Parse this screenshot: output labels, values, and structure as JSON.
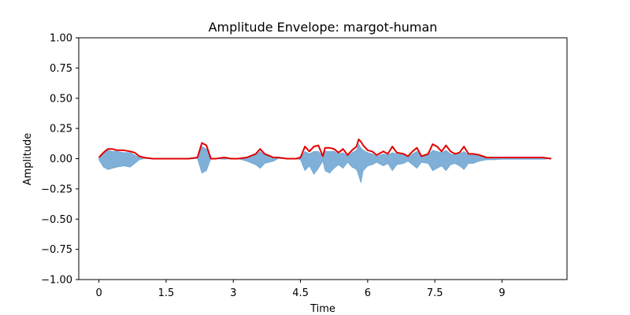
{
  "chart_data": {
    "type": "area",
    "title": "Amplitude Envelope: margot-human",
    "xlabel": "Time",
    "ylabel": "Amplitude",
    "xlim": [
      -0.45,
      10.45
    ],
    "ylim": [
      -1.0,
      1.0
    ],
    "x_ticks": [
      0,
      1.5,
      3,
      4.5,
      6,
      7.5,
      9
    ],
    "x_tick_labels": [
      "0",
      "1.5",
      "3",
      "4.5",
      "6",
      "7.5",
      "9"
    ],
    "y_ticks": [
      1.0,
      0.75,
      0.5,
      0.25,
      0.0,
      -0.25,
      -0.5,
      -0.75,
      -1.0
    ],
    "y_tick_labels": [
      "1.00",
      "0.75",
      "0.50",
      "0.25",
      "0.00",
      "−0.25",
      "−0.50",
      "−0.75",
      "−1.00"
    ],
    "grid": false,
    "colors": {
      "waveform": "#4a8fc7",
      "envelope": "#e00000"
    },
    "series": [
      {
        "kind": "waveform",
        "x": [
          0.0,
          0.1,
          0.2,
          0.3,
          0.4,
          0.55,
          0.7,
          0.8,
          0.9,
          1.0,
          1.2,
          1.5,
          2.0,
          2.2,
          2.3,
          2.4,
          2.5,
          2.6,
          2.8,
          2.95,
          3.1,
          3.3,
          3.5,
          3.6,
          3.7,
          3.9,
          4.0,
          4.2,
          4.4,
          4.5,
          4.6,
          4.7,
          4.8,
          4.9,
          5.0,
          5.05,
          5.15,
          5.25,
          5.35,
          5.45,
          5.55,
          5.65,
          5.75,
          5.8,
          5.85,
          5.9,
          6.0,
          6.1,
          6.2,
          6.35,
          6.45,
          6.55,
          6.65,
          6.8,
          6.9,
          7.0,
          7.1,
          7.2,
          7.35,
          7.45,
          7.55,
          7.65,
          7.75,
          7.85,
          7.95,
          8.05,
          8.15,
          8.25,
          8.35,
          8.5,
          8.65,
          8.8,
          9.0,
          9.3,
          9.6,
          9.9,
          10.1
        ],
        "upper": [
          0.01,
          0.04,
          0.07,
          0.06,
          0.06,
          0.05,
          0.05,
          0.03,
          0.01,
          0.0,
          0.0,
          0.0,
          0.0,
          0.0,
          0.1,
          0.08,
          0.0,
          0.0,
          0.005,
          0.0,
          0.0,
          0.01,
          0.03,
          0.06,
          0.03,
          0.01,
          0.0,
          0.0,
          0.0,
          0.005,
          0.06,
          0.04,
          0.06,
          0.06,
          0.02,
          0.06,
          0.06,
          0.06,
          0.04,
          0.05,
          0.02,
          0.05,
          0.07,
          0.12,
          0.09,
          0.07,
          0.05,
          0.04,
          0.02,
          0.04,
          0.03,
          0.05,
          0.04,
          0.03,
          0.01,
          0.04,
          0.06,
          0.02,
          0.03,
          0.07,
          0.06,
          0.05,
          0.07,
          0.04,
          0.03,
          0.04,
          0.06,
          0.03,
          0.03,
          0.02,
          0.01,
          0.01,
          0.005,
          0.005,
          0.005,
          0.005,
          0.0
        ],
        "lower": [
          -0.01,
          -0.07,
          -0.09,
          -0.08,
          -0.07,
          -0.06,
          -0.07,
          -0.04,
          -0.01,
          0.0,
          0.0,
          0.0,
          0.0,
          0.0,
          -0.12,
          -0.1,
          0.0,
          0.0,
          -0.005,
          0.0,
          0.0,
          -0.02,
          -0.05,
          -0.08,
          -0.04,
          -0.02,
          0.0,
          0.0,
          0.0,
          -0.01,
          -0.1,
          -0.06,
          -0.13,
          -0.08,
          -0.02,
          -0.1,
          -0.12,
          -0.08,
          -0.05,
          -0.08,
          -0.03,
          -0.07,
          -0.09,
          -0.14,
          -0.2,
          -0.1,
          -0.06,
          -0.05,
          -0.03,
          -0.06,
          -0.04,
          -0.1,
          -0.05,
          -0.04,
          -0.02,
          -0.05,
          -0.08,
          -0.03,
          -0.04,
          -0.1,
          -0.08,
          -0.06,
          -0.1,
          -0.05,
          -0.04,
          -0.06,
          -0.09,
          -0.04,
          -0.04,
          -0.02,
          -0.01,
          -0.01,
          -0.005,
          -0.005,
          -0.005,
          -0.005,
          0.0
        ]
      },
      {
        "kind": "envelope",
        "x": [
          0.0,
          0.1,
          0.2,
          0.3,
          0.4,
          0.55,
          0.7,
          0.8,
          0.9,
          1.0,
          1.2,
          1.5,
          2.0,
          2.2,
          2.3,
          2.4,
          2.5,
          2.6,
          2.8,
          2.95,
          3.1,
          3.3,
          3.5,
          3.6,
          3.7,
          3.9,
          4.0,
          4.2,
          4.4,
          4.5,
          4.6,
          4.7,
          4.8,
          4.9,
          5.0,
          5.05,
          5.15,
          5.25,
          5.35,
          5.45,
          5.55,
          5.65,
          5.75,
          5.8,
          5.85,
          5.9,
          6.0,
          6.1,
          6.2,
          6.35,
          6.45,
          6.55,
          6.65,
          6.8,
          6.9,
          7.0,
          7.1,
          7.2,
          7.35,
          7.45,
          7.55,
          7.65,
          7.75,
          7.85,
          7.95,
          8.05,
          8.15,
          8.25,
          8.35,
          8.5,
          8.65,
          8.8,
          9.0,
          9.3,
          9.6,
          9.9,
          10.1
        ],
        "values": [
          0.01,
          0.05,
          0.08,
          0.08,
          0.07,
          0.07,
          0.06,
          0.05,
          0.02,
          0.01,
          0.0,
          0.0,
          0.0,
          0.01,
          0.13,
          0.11,
          0.0,
          0.0,
          0.01,
          0.0,
          0.0,
          0.01,
          0.04,
          0.08,
          0.04,
          0.01,
          0.01,
          0.0,
          0.0,
          0.01,
          0.1,
          0.06,
          0.1,
          0.11,
          0.02,
          0.09,
          0.09,
          0.08,
          0.05,
          0.08,
          0.03,
          0.07,
          0.1,
          0.16,
          0.14,
          0.11,
          0.07,
          0.06,
          0.03,
          0.06,
          0.04,
          0.1,
          0.05,
          0.04,
          0.02,
          0.06,
          0.09,
          0.02,
          0.04,
          0.12,
          0.1,
          0.06,
          0.11,
          0.06,
          0.04,
          0.05,
          0.1,
          0.04,
          0.04,
          0.03,
          0.01,
          0.01,
          0.01,
          0.01,
          0.01,
          0.01,
          0.0
        ]
      }
    ]
  }
}
